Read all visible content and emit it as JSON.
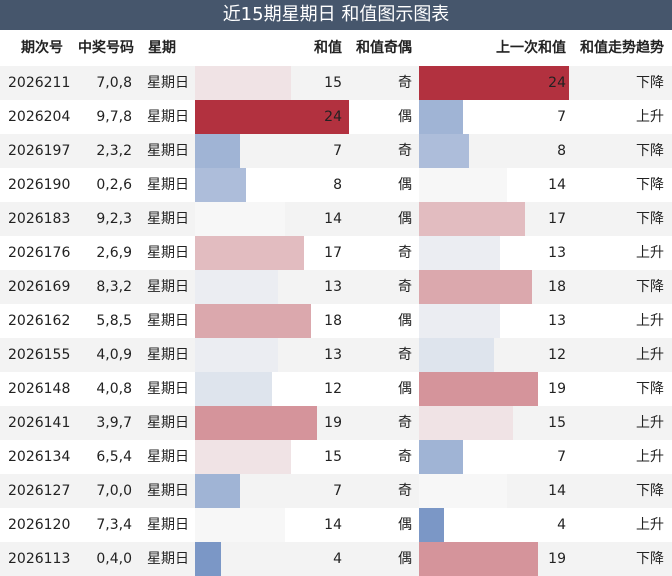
{
  "title": "近15期星期日 和值图示图表",
  "columns": {
    "period": "期次号",
    "numbers": "中奖号码",
    "weekday": "星期",
    "sum": "和值",
    "parity": "和值奇偶",
    "prev_sum": "上一次和值",
    "trend": "和值走势趋势"
  },
  "colors": {
    "title_bg": "#46566c",
    "low": "#7b97c6",
    "mid": "#f7f7f7",
    "high": "#b2313f"
  },
  "chart_data": {
    "type": "table",
    "value_range": [
      4,
      24
    ],
    "rows": [
      {
        "period": "2026211",
        "numbers": "7,0,8",
        "weekday": "星期日",
        "sum": 15,
        "parity": "奇",
        "prev_sum": 24,
        "trend": "下降"
      },
      {
        "period": "2026204",
        "numbers": "9,7,8",
        "weekday": "星期日",
        "sum": 24,
        "parity": "偶",
        "prev_sum": 7,
        "trend": "上升"
      },
      {
        "period": "2026197",
        "numbers": "2,3,2",
        "weekday": "星期日",
        "sum": 7,
        "parity": "奇",
        "prev_sum": 8,
        "trend": "下降"
      },
      {
        "period": "2026190",
        "numbers": "0,2,6",
        "weekday": "星期日",
        "sum": 8,
        "parity": "偶",
        "prev_sum": 14,
        "trend": "下降"
      },
      {
        "period": "2026183",
        "numbers": "9,2,3",
        "weekday": "星期日",
        "sum": 14,
        "parity": "偶",
        "prev_sum": 17,
        "trend": "下降"
      },
      {
        "period": "2026176",
        "numbers": "2,6,9",
        "weekday": "星期日",
        "sum": 17,
        "parity": "奇",
        "prev_sum": 13,
        "trend": "上升"
      },
      {
        "period": "2026169",
        "numbers": "8,3,2",
        "weekday": "星期日",
        "sum": 13,
        "parity": "奇",
        "prev_sum": 18,
        "trend": "下降"
      },
      {
        "period": "2026162",
        "numbers": "5,8,5",
        "weekday": "星期日",
        "sum": 18,
        "parity": "偶",
        "prev_sum": 13,
        "trend": "上升"
      },
      {
        "period": "2026155",
        "numbers": "4,0,9",
        "weekday": "星期日",
        "sum": 13,
        "parity": "奇",
        "prev_sum": 12,
        "trend": "上升"
      },
      {
        "period": "2026148",
        "numbers": "4,0,8",
        "weekday": "星期日",
        "sum": 12,
        "parity": "偶",
        "prev_sum": 19,
        "trend": "下降"
      },
      {
        "period": "2026141",
        "numbers": "3,9,7",
        "weekday": "星期日",
        "sum": 19,
        "parity": "奇",
        "prev_sum": 15,
        "trend": "上升"
      },
      {
        "period": "2026134",
        "numbers": "6,5,4",
        "weekday": "星期日",
        "sum": 15,
        "parity": "奇",
        "prev_sum": 7,
        "trend": "上升"
      },
      {
        "period": "2026127",
        "numbers": "7,0,0",
        "weekday": "星期日",
        "sum": 7,
        "parity": "奇",
        "prev_sum": 14,
        "trend": "下降"
      },
      {
        "period": "2026120",
        "numbers": "7,3,4",
        "weekday": "星期日",
        "sum": 14,
        "parity": "偶",
        "prev_sum": 4,
        "trend": "上升"
      },
      {
        "period": "2026113",
        "numbers": "0,4,0",
        "weekday": "星期日",
        "sum": 4,
        "parity": "偶",
        "prev_sum": 19,
        "trend": "下降"
      }
    ]
  }
}
